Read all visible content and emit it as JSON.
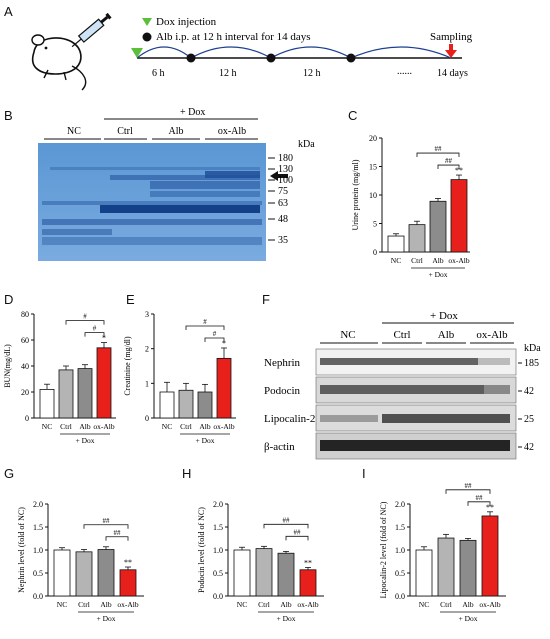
{
  "panels": {
    "A": "A",
    "B": "B",
    "C": "C",
    "D": "D",
    "E": "E",
    "F": "F",
    "G": "G",
    "H": "H",
    "I": "I"
  },
  "timeline": {
    "legend_dox": "Dox injection",
    "legend_alb": "Alb i.p. at 12 h interval for 14 days",
    "sampling": "Sampling",
    "ticks": [
      "6 h",
      "12 h",
      "12 h",
      "......",
      "14 days"
    ]
  },
  "gel": {
    "top_label": "+ Dox",
    "groups": [
      "NC",
      "Ctrl",
      "Alb",
      "ox-Alb"
    ],
    "kda_label": "kDa",
    "markers": [
      "180",
      "130",
      "100",
      "75",
      "63",
      "48",
      "35"
    ]
  },
  "western": {
    "top_label": "+ Dox",
    "groups": [
      "NC",
      "Ctrl",
      "Alb",
      "ox-Alb"
    ],
    "kda_label": "kDa",
    "rows": [
      {
        "name": "Nephrin",
        "kda": "185"
      },
      {
        "name": "Podocin",
        "kda": "42"
      },
      {
        "name": "Lipocalin-2",
        "kda": "25"
      },
      {
        "name": "β-actin",
        "kda": "42"
      }
    ]
  },
  "dox_label": "+ Dox",
  "colors": {
    "NC": "#ffffff",
    "Ctrl": "#b4b4b4",
    "Alb": "#8c8c8c",
    "ox-Alb": "#e8201c",
    "dox_triangle": "#5bbf3b",
    "sampling_arrow": "#e8201c",
    "gel_blue": "#3a78bd"
  },
  "chart_data": [
    {
      "id": "C",
      "type": "bar",
      "categories": [
        "NC",
        "Ctrl",
        "Alb",
        "ox-Alb"
      ],
      "values": [
        2.8,
        4.8,
        8.9,
        12.7
      ],
      "errors": [
        0.4,
        0.6,
        0.5,
        0.8
      ],
      "ylabel": "Urine protein (mg/ml)",
      "yticks": [
        "0",
        "5",
        "10",
        "15",
        "20"
      ],
      "ylim": [
        0,
        20
      ],
      "stars": [
        "",
        "",
        "",
        "**"
      ],
      "sig_brackets": [
        "##",
        "##"
      ]
    },
    {
      "id": "D",
      "type": "bar",
      "categories": [
        "NC",
        "Ctrl",
        "Alb",
        "ox-Alb"
      ],
      "values": [
        22,
        37,
        38,
        54
      ],
      "errors": [
        4,
        3,
        3,
        4
      ],
      "ylabel": "BUN(mg/dL)",
      "yticks": [
        "0",
        "20",
        "40",
        "60",
        "80"
      ],
      "ylim": [
        0,
        80
      ],
      "stars": [
        "",
        "",
        "",
        "*"
      ],
      "sig_brackets": [
        "#",
        "#"
      ]
    },
    {
      "id": "E",
      "type": "bar",
      "categories": [
        "NC",
        "Ctrl",
        "Alb",
        "ox-Alb"
      ],
      "values": [
        0.75,
        0.8,
        0.75,
        1.72
      ],
      "errors": [
        0.28,
        0.2,
        0.22,
        0.3
      ],
      "ylabel": "Creatinine (mg/dl)",
      "yticks": [
        "0",
        "1",
        "2",
        "3"
      ],
      "ylim": [
        0,
        3
      ],
      "stars": [
        "",
        "",
        "",
        "*"
      ],
      "sig_brackets": [
        "#",
        "#"
      ]
    },
    {
      "id": "G",
      "type": "bar",
      "categories": [
        "NC",
        "Ctrl",
        "Alb",
        "ox-Alb"
      ],
      "values": [
        1.0,
        0.96,
        1.01,
        0.57
      ],
      "errors": [
        0.05,
        0.05,
        0.06,
        0.06
      ],
      "ylabel": "Nephrin level (fold of NC)",
      "yticks": [
        "0.0",
        "0.5",
        "1.0",
        "1.5",
        "2.0"
      ],
      "ylim": [
        0,
        2
      ],
      "stars": [
        "",
        "",
        "",
        "**"
      ],
      "sig_brackets": [
        "##",
        "##"
      ]
    },
    {
      "id": "H",
      "type": "bar",
      "categories": [
        "NC",
        "Ctrl",
        "Alb",
        "ox-Alb"
      ],
      "values": [
        1.0,
        1.03,
        0.93,
        0.57
      ],
      "errors": [
        0.06,
        0.05,
        0.04,
        0.05
      ],
      "ylabel": "Podocin level (fold of NC)",
      "yticks": [
        "0.0",
        "0.5",
        "1.0",
        "1.5",
        "2.0"
      ],
      "ylim": [
        0,
        2
      ],
      "stars": [
        "",
        "",
        "",
        "**"
      ],
      "sig_brackets": [
        "##",
        "##"
      ]
    },
    {
      "id": "I",
      "type": "bar",
      "categories": [
        "NC",
        "Ctrl",
        "Alb",
        "ox-Alb"
      ],
      "values": [
        1.0,
        1.26,
        1.21,
        1.74
      ],
      "errors": [
        0.07,
        0.08,
        0.04,
        0.09
      ],
      "ylabel": "Lipocalin-2 level (fold of NC)",
      "yticks": [
        "0.0",
        "0.5",
        "1.0",
        "1.5",
        "2.0"
      ],
      "ylim": [
        0,
        2
      ],
      "stars": [
        "",
        "",
        "",
        "**"
      ],
      "sig_brackets": [
        "##",
        "##"
      ]
    }
  ]
}
